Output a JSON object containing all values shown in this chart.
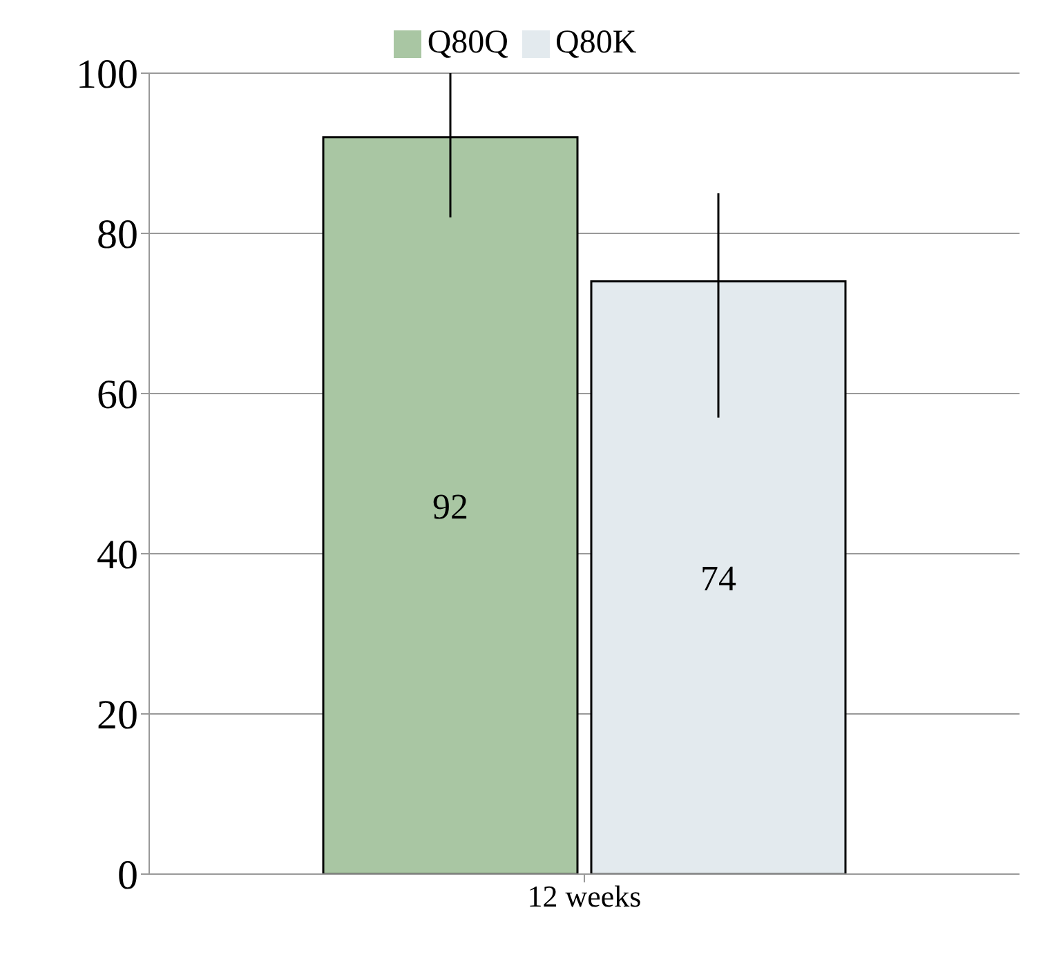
{
  "chart_data": {
    "type": "bar",
    "categories": [
      "12 weeks"
    ],
    "series": [
      {
        "name": "Q80Q",
        "color": "#a9c6a3",
        "values": [
          92
        ],
        "errors": [
          [
            82,
            100
          ]
        ]
      },
      {
        "name": "Q80K",
        "color": "#e3eaee",
        "values": [
          74
        ],
        "errors": [
          [
            57,
            85
          ]
        ]
      }
    ],
    "ylim": [
      0,
      100
    ],
    "yticks": [
      0,
      20,
      40,
      60,
      80,
      100
    ],
    "grid": "y",
    "legend": "top",
    "data_labels": true
  }
}
